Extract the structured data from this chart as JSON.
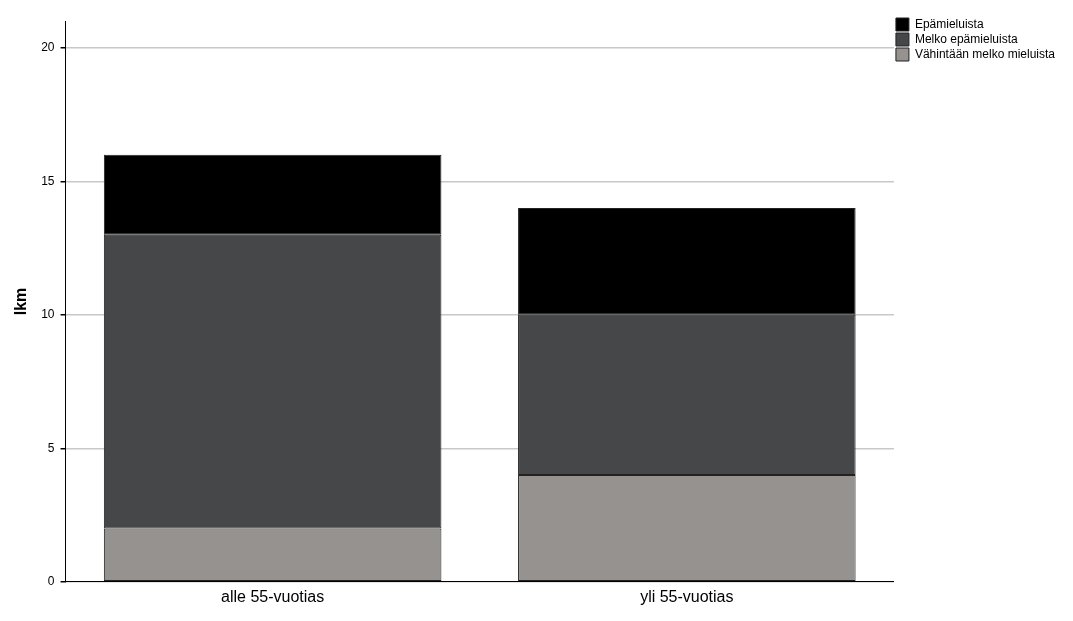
{
  "chart_data": {
    "type": "bar",
    "stacked": true,
    "ylabel": "lkm",
    "categories": [
      "alle 55-vuotias",
      "yli 55-vuotias"
    ],
    "series": [
      {
        "name": "Vähintään melko mieluista",
        "color": "#959290",
        "values": [
          2,
          4
        ]
      },
      {
        "name": "Melko epämieluista",
        "color": "#464749",
        "values": [
          11,
          6
        ]
      },
      {
        "name": "Epämieluista",
        "color": "#000000",
        "values": [
          3,
          4
        ]
      }
    ],
    "ylim": [
      0,
      21
    ],
    "yticks": [
      0,
      5,
      10,
      15,
      20
    ],
    "grid": "y",
    "legend": "top right"
  }
}
